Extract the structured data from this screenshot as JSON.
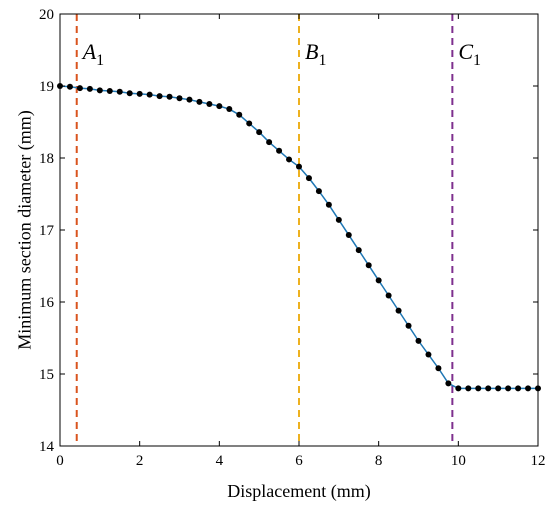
{
  "chart_data": {
    "type": "line",
    "title": "",
    "xlabel": "Displacement (mm)",
    "ylabel": "Minimum section diameter (mm)",
    "xlim": [
      0,
      12
    ],
    "ylim": [
      14,
      20
    ],
    "xticks": [
      "0",
      "2",
      "4",
      "6",
      "8",
      "10",
      "12"
    ],
    "yticks": [
      "14",
      "15",
      "16",
      "17",
      "18",
      "19",
      "20"
    ],
    "grid": false,
    "legend": "none",
    "colors": {
      "line": "#1f77b4",
      "points": "#000000",
      "A": "#d9541e",
      "B": "#edb120",
      "C": "#7e2f8e"
    },
    "series": [
      {
        "x": [
          0,
          0.25,
          0.5,
          0.75,
          1.0,
          1.25,
          1.5,
          1.75,
          2.0,
          2.25,
          2.5,
          2.75,
          3.0,
          3.25,
          3.5,
          3.75,
          4.0,
          4.25,
          4.5,
          4.75,
          5.0,
          5.25,
          5.5,
          5.75,
          6.0,
          6.25,
          6.5,
          6.75,
          7.0,
          7.25,
          7.5,
          7.75,
          8.0,
          8.25,
          8.5,
          8.75,
          9.0,
          9.25,
          9.5,
          9.75,
          10.0,
          10.25,
          10.5,
          10.75,
          11.0,
          11.25,
          11.5,
          11.75,
          12.0
        ],
        "y": [
          19.0,
          18.99,
          18.97,
          18.96,
          18.94,
          18.93,
          18.92,
          18.9,
          18.89,
          18.88,
          18.86,
          18.85,
          18.83,
          18.81,
          18.78,
          18.75,
          18.72,
          18.68,
          18.6,
          18.48,
          18.36,
          18.22,
          18.1,
          17.98,
          17.88,
          17.72,
          17.54,
          17.35,
          17.14,
          16.93,
          16.72,
          16.51,
          16.3,
          16.09,
          15.88,
          15.67,
          15.46,
          15.27,
          15.08,
          14.87,
          14.8,
          14.8,
          14.8,
          14.8,
          14.8,
          14.8,
          14.8,
          14.8,
          14.8
        ]
      }
    ],
    "markers": [
      {
        "letter": "A",
        "sub": "1",
        "x": 0.42,
        "color": "#d9541e"
      },
      {
        "letter": "B",
        "sub": "1",
        "x": 6.0,
        "color": "#edb120"
      },
      {
        "letter": "C",
        "sub": "1",
        "x": 9.85,
        "color": "#7e2f8e"
      }
    ]
  }
}
